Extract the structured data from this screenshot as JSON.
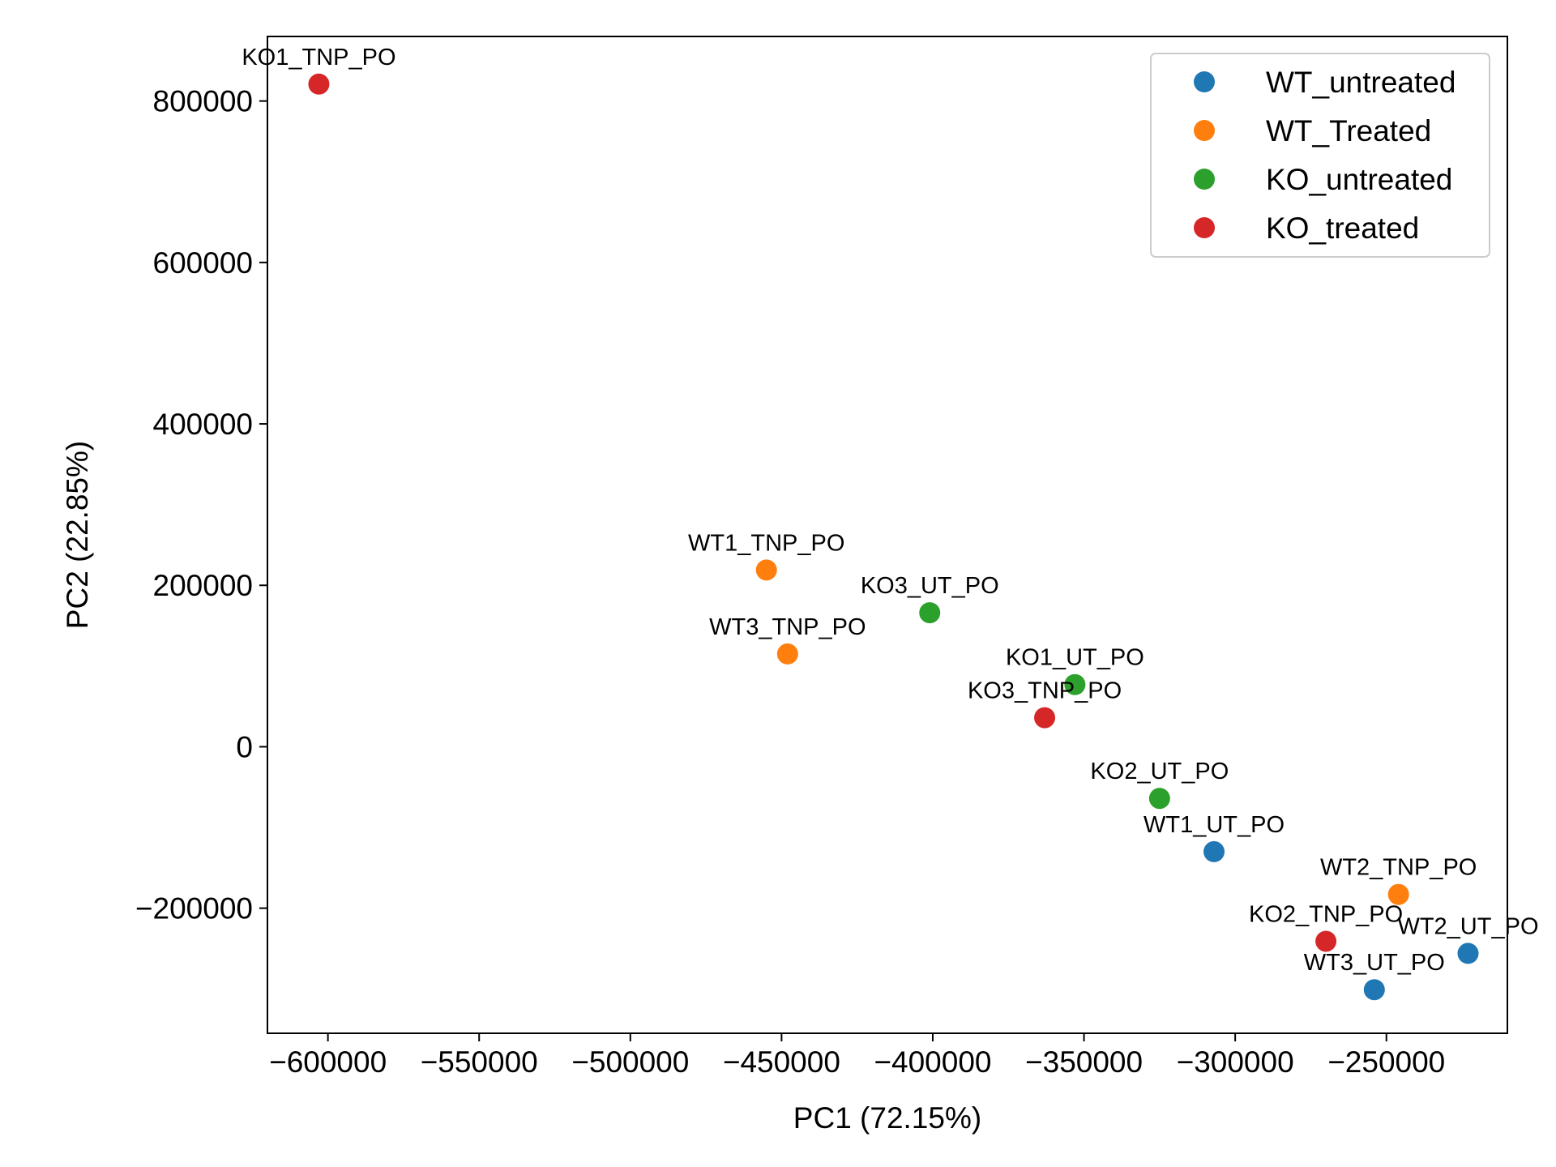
{
  "chart_data": {
    "type": "scatter",
    "title": "",
    "xlabel": "PC1 (72.15%)",
    "ylabel": "PC2 (22.85%)",
    "xlim": [
      -620000,
      -210000
    ],
    "ylim": [
      -355000,
      880000
    ],
    "xticks": [
      -600000,
      -550000,
      -500000,
      -450000,
      -400000,
      -350000,
      -300000,
      -250000
    ],
    "xtick_labels": [
      "−600000",
      "−550000",
      "−500000",
      "−450000",
      "−400000",
      "−350000",
      "−300000",
      "−250000"
    ],
    "yticks": [
      -200000,
      0,
      200000,
      400000,
      600000,
      800000
    ],
    "ytick_labels": [
      "−200000",
      "0",
      "200000",
      "400000",
      "600000",
      "800000"
    ],
    "grid": false,
    "legend_position": "top-right",
    "series": [
      {
        "name": "WT_untreated",
        "color": "#1f77b4",
        "points": [
          {
            "label": "WT1_UT_PO",
            "x": -307000,
            "y": -130000
          },
          {
            "label": "WT2_UT_PO",
            "x": -223000,
            "y": -256000
          },
          {
            "label": "WT3_UT_PO",
            "x": -254000,
            "y": -301000
          }
        ]
      },
      {
        "name": "WT_Treated",
        "color": "#ff7f0e",
        "points": [
          {
            "label": "WT1_TNP_PO",
            "x": -455000,
            "y": 219000
          },
          {
            "label": "WT2_TNP_PO",
            "x": -246000,
            "y": -183000
          },
          {
            "label": "WT3_TNP_PO",
            "x": -448000,
            "y": 115000
          }
        ]
      },
      {
        "name": "KO_untreated",
        "color": "#2ca02c",
        "points": [
          {
            "label": "KO1_UT_PO",
            "x": -353000,
            "y": 77000
          },
          {
            "label": "KO2_UT_PO",
            "x": -325000,
            "y": -64000
          },
          {
            "label": "KO3_UT_PO",
            "x": -401000,
            "y": 166000
          }
        ]
      },
      {
        "name": "KO_treated",
        "color": "#d62728",
        "points": [
          {
            "label": "KO1_TNP_PO",
            "x": -603000,
            "y": 821000
          },
          {
            "label": "KO2_TNP_PO",
            "x": -270000,
            "y": -241000
          },
          {
            "label": "KO3_TNP_PO",
            "x": -363000,
            "y": 36000
          }
        ]
      }
    ]
  }
}
